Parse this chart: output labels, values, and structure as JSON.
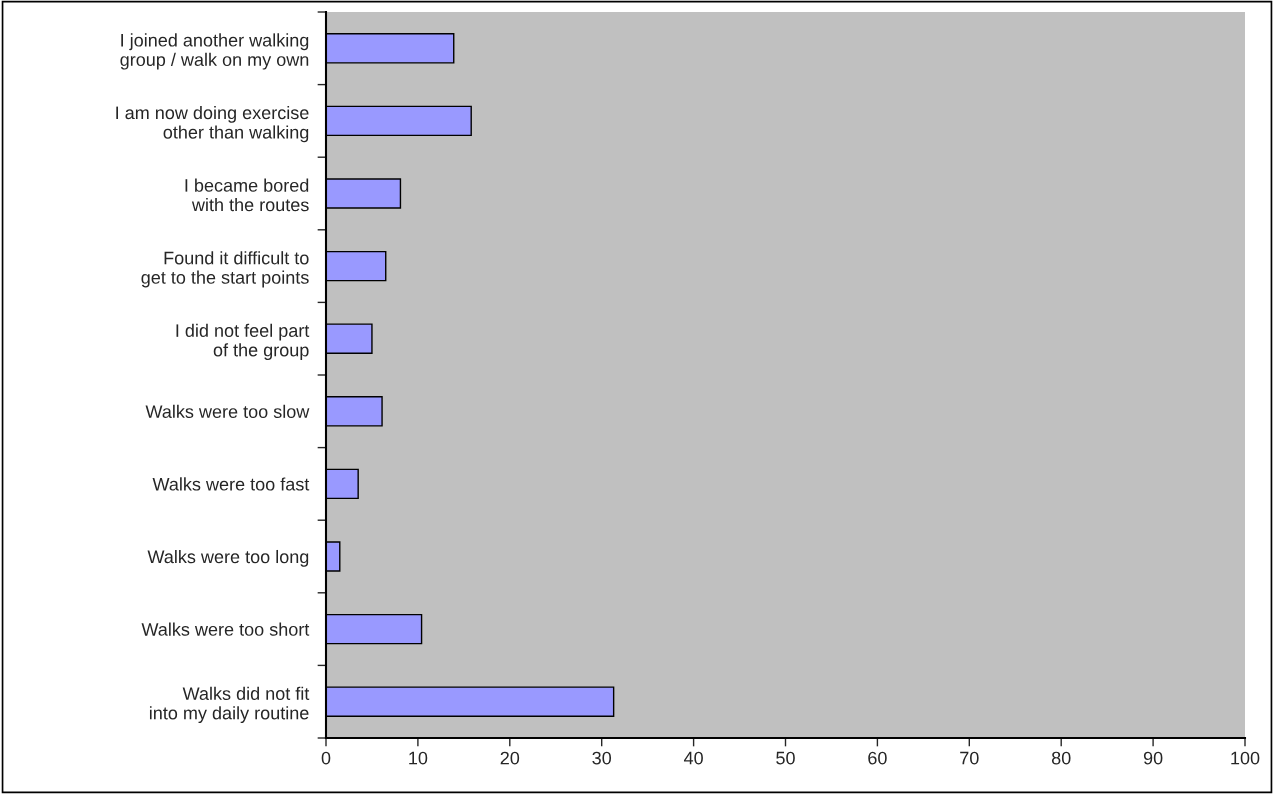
{
  "chart_data": {
    "type": "bar",
    "orientation": "horizontal",
    "categories": [
      "I joined another walking\ngroup / walk on my own",
      "I am now doing exercise\nother than walking",
      "I became bored\nwith the routes",
      "Found it difficult to\nget to the start points",
      "I did not feel part\nof the group",
      "Walks were too slow",
      "Walks were too fast",
      "Walks were too long",
      "Walks were too short",
      "Walks did not fit\ninto my daily routine"
    ],
    "values": [
      13.9,
      15.8,
      8.1,
      6.5,
      5.0,
      6.1,
      3.5,
      1.5,
      10.4,
      31.3
    ],
    "color": "#9999ff",
    "xlim": [
      0,
      100
    ],
    "xticks": [
      0,
      10,
      20,
      30,
      40,
      50,
      60,
      70,
      80,
      90,
      100
    ],
    "grid": false,
    "legend": false
  }
}
